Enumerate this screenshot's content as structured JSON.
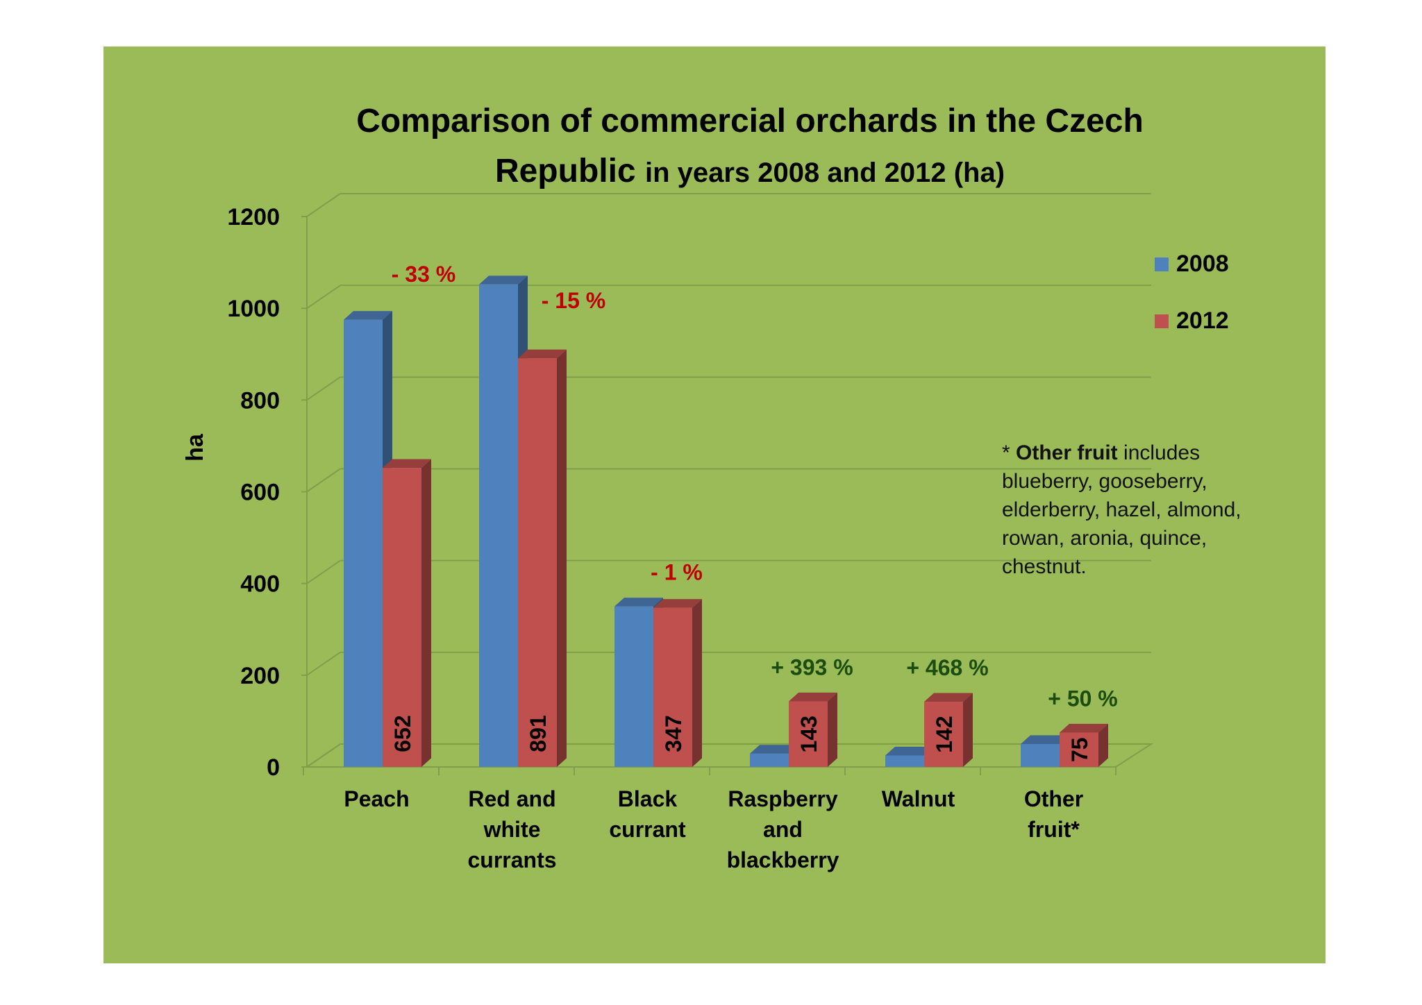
{
  "chart_data": {
    "type": "bar",
    "title_line1": "Comparison of commercial orchards in the Czech",
    "title_line2_bold": "Republic",
    "title_line2_rest": "in years 2008 and 2012 (ha)",
    "ylabel": "ha",
    "ylim": [
      0,
      1200
    ],
    "yticks": [
      "0",
      "200",
      "400",
      "600",
      "800",
      "1000",
      "1200"
    ],
    "categories": [
      [
        "Peach"
      ],
      [
        "Red and",
        "white",
        "currants"
      ],
      [
        "Black",
        "currant"
      ],
      [
        "Raspberry",
        "and",
        "blackberry"
      ],
      [
        "Walnut"
      ],
      [
        "Other",
        "fruit*"
      ]
    ],
    "series": [
      {
        "name": "2008",
        "color": "#4f81bd",
        "values": [
          975,
          1052,
          350,
          29,
          25,
          50
        ]
      },
      {
        "name": "2012",
        "color": "#c0504d",
        "values": [
          652,
          891,
          347,
          143,
          142,
          75
        ]
      }
    ],
    "value_labels_2012": [
      "652",
      "891",
      "347",
      "143",
      "142",
      "75"
    ],
    "change_labels": [
      {
        "text": "- 33 %",
        "trend": "down"
      },
      {
        "text": "- 15 %",
        "trend": "down"
      },
      {
        "text": "- 1 %",
        "trend": "down"
      },
      {
        "text": "+ 393 %",
        "trend": "up"
      },
      {
        "text": "+ 468 %",
        "trend": "up"
      },
      {
        "text": "+ 50 %",
        "trend": "up"
      }
    ],
    "legend": [
      "2008",
      "2012"
    ],
    "legend_position": "top-right",
    "grid": true
  },
  "note": {
    "prefix": "* ",
    "bold": "Other fruit",
    "rest": " includes blueberry, gooseberry, elderberry, hazel, almond, rowan, aronia, quince, chestnut."
  }
}
